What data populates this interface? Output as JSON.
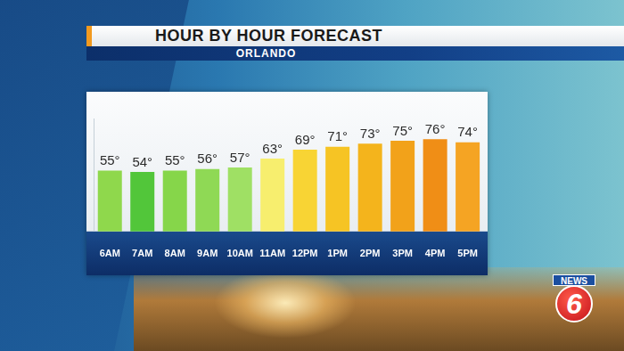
{
  "chart_data": {
    "type": "bar",
    "title": "HOUR BY HOUR FORECAST",
    "subtitle": "ORLANDO",
    "annotations": [
      "NEWS",
      "6"
    ],
    "categories": [
      "6AM",
      "7AM",
      "8AM",
      "9AM",
      "10AM",
      "11AM",
      "12PM",
      "1PM",
      "2PM",
      "3PM",
      "4PM",
      "5PM"
    ],
    "values": [
      55,
      54,
      55,
      56,
      57,
      63,
      69,
      71,
      73,
      75,
      76,
      74
    ],
    "value_labels": [
      "55°",
      "54°",
      "55°",
      "56°",
      "57°",
      "63°",
      "69°",
      "71°",
      "73°",
      "75°",
      "76°",
      "74°"
    ],
    "colors": [
      "#8fd84c",
      "#52c63a",
      "#86d64a",
      "#8fd955",
      "#9fe064",
      "#f7ee6e",
      "#f8d434",
      "#f6c424",
      "#f4b41c",
      "#f2a21a",
      "#f08e16",
      "#f5a423"
    ],
    "ylim": [
      14,
      90
    ],
    "yticks": [],
    "grid": false,
    "data_labels": true,
    "tick_labels": "x"
  }
}
